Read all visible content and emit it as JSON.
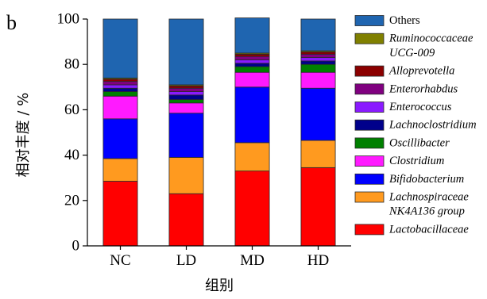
{
  "panel_label": "b",
  "chart_data": {
    "type": "bar",
    "stacked": true,
    "categories": [
      "NC",
      "LD",
      "MD",
      "HD"
    ],
    "ylabel": "相对丰度 / %",
    "xlabel": "组别",
    "ylim": [
      0,
      100
    ],
    "yticks": [
      0,
      20,
      40,
      60,
      80,
      100
    ],
    "legend_position": "right",
    "series": [
      {
        "name": "Lactobacillaceae",
        "label_lines": [
          "Lactobacillaceae"
        ],
        "italic": true,
        "color": "#ff0000",
        "values": [
          28.5,
          23,
          33,
          34.5
        ]
      },
      {
        "name": "Lachnospiraceae NK4A136 group",
        "label_lines": [
          "Lachnospiraceae",
          "NK4A136 group"
        ],
        "italic": true,
        "color": "#ff9a1f",
        "values": [
          10,
          16,
          12.5,
          12
        ]
      },
      {
        "name": "Bifidobacterium",
        "label_lines": [
          "Bifidobacterium"
        ],
        "italic": true,
        "color": "#0000ff",
        "values": [
          17.5,
          19.5,
          24.5,
          23
        ]
      },
      {
        "name": "Clostridium",
        "label_lines": [
          "Clostridium"
        ],
        "italic": true,
        "color": "#ff1aff",
        "values": [
          10,
          4.5,
          6.5,
          7
        ]
      },
      {
        "name": "Oscillibacter",
        "label_lines": [
          "Oscillibacter"
        ],
        "italic": true,
        "color": "#008000",
        "values": [
          2,
          1.5,
          2.5,
          3.5
        ]
      },
      {
        "name": "Lachnoclostridium",
        "label_lines": [
          "Lachnoclostridium"
        ],
        "italic": true,
        "color": "#00008b",
        "values": [
          1.5,
          2,
          1.5,
          1.5
        ]
      },
      {
        "name": "Enterococcus",
        "label_lines": [
          "Enterococcus"
        ],
        "italic": true,
        "color": "#8a1aff",
        "values": [
          1.5,
          1.5,
          1.5,
          1.5
        ]
      },
      {
        "name": "Enterorhabdus",
        "label_lines": [
          "Enterorhabdus"
        ],
        "italic": true,
        "color": "#800080",
        "values": [
          1.5,
          1.5,
          1.5,
          1.5
        ]
      },
      {
        "name": "Alloprevotella",
        "label_lines": [
          "Alloprevotella"
        ],
        "italic": true,
        "color": "#8b0000",
        "values": [
          1,
          1,
          1,
          1
        ]
      },
      {
        "name": "Ruminococcaceae UCG-009",
        "label_lines": [
          "Ruminococcaceae",
          "UCG-009"
        ],
        "italic": true,
        "color": "#808000",
        "values": [
          0.5,
          0.5,
          0.5,
          0.5
        ]
      },
      {
        "name": "Others",
        "label_lines": [
          "Others"
        ],
        "italic": false,
        "color": "#1f65b0",
        "values": [
          26,
          29,
          15.5,
          14
        ]
      }
    ]
  }
}
